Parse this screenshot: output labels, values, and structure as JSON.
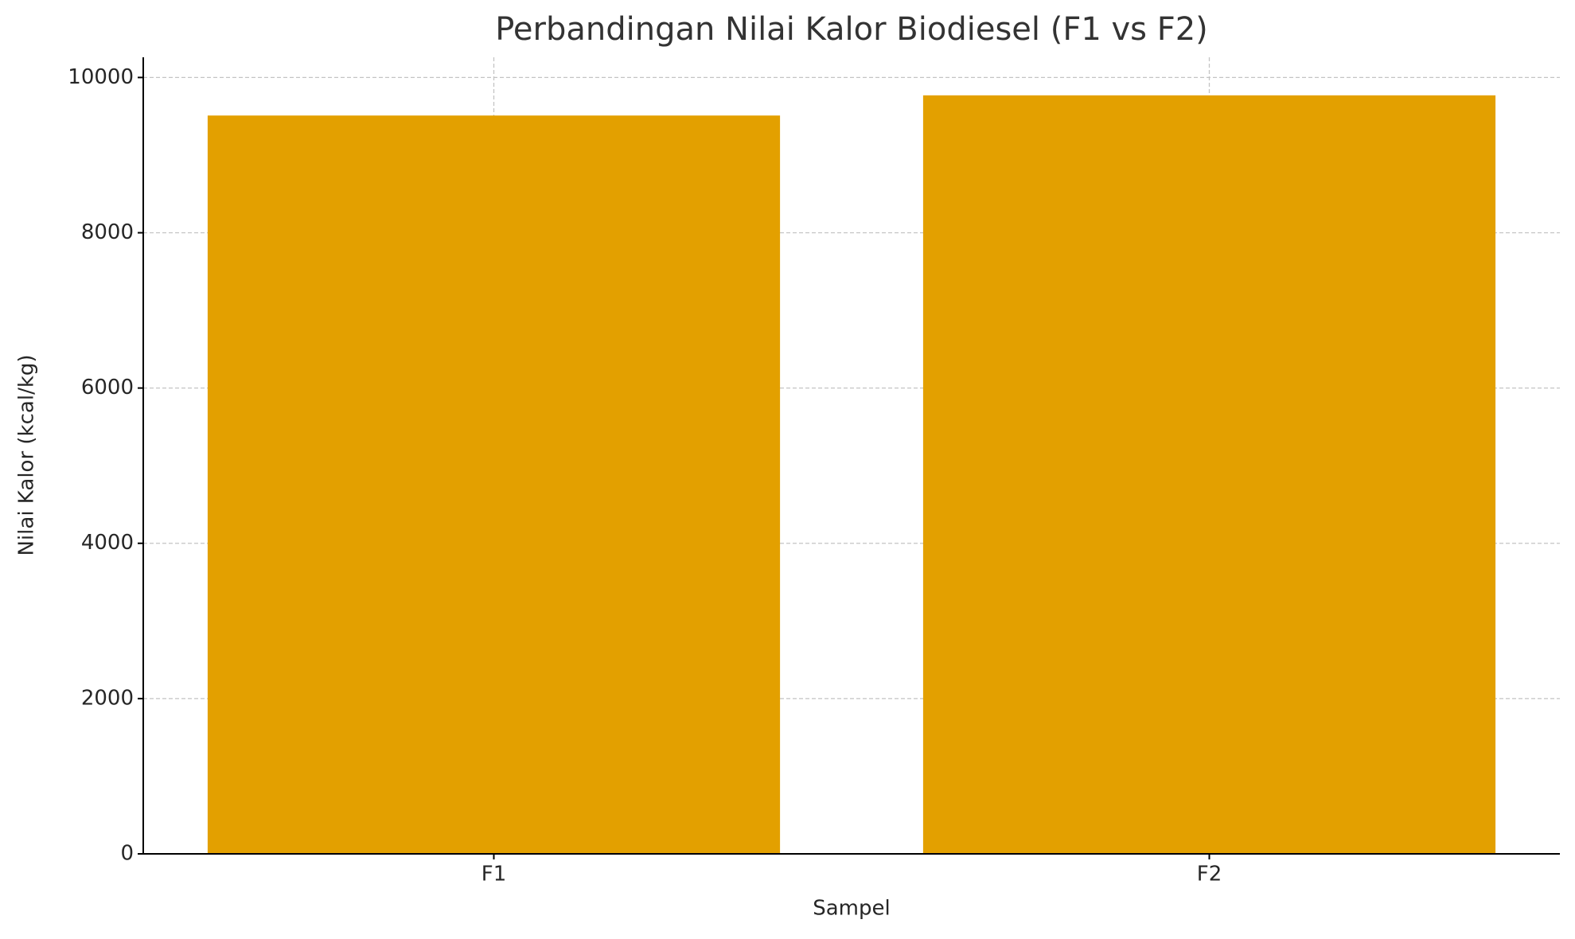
{
  "chart_data": {
    "type": "bar",
    "title": "Perbandingan Nilai Kalor Biodiesel (F1 vs F2)",
    "x_label": "Sampel",
    "y_label": "Nilai Kalor (kcal/kg)",
    "categories": [
      "F1",
      "F2"
    ],
    "values": [
      9510,
      9770
    ],
    "color": "#e3a000",
    "ylim": [
      0,
      10260
    ],
    "yticks": [
      0,
      2000,
      4000,
      6000,
      8000,
      10000
    ],
    "grid": true
  }
}
